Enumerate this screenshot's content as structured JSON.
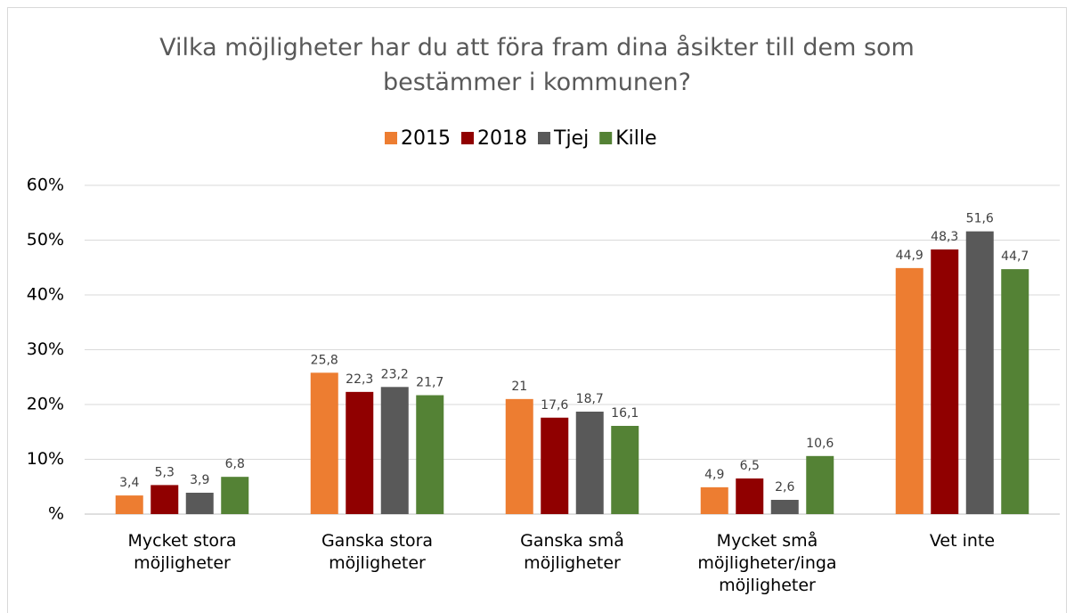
{
  "chart_data": {
    "type": "bar",
    "title": "Vilka möjligheter har du att föra fram dina åsikter till dem som bestämmer i kommunen?",
    "categories": [
      "Mycket stora möjligheter",
      "Ganska stora möjligheter",
      "Ganska små möjligheter",
      "Mycket små möjligheter/inga möjligheter",
      "Vet inte"
    ],
    "series": [
      {
        "name": "2015",
        "color": "#ed7d31",
        "values": [
          3.4,
          25.8,
          21,
          4.9,
          44.9
        ],
        "value_labels": [
          "3,4",
          "25,8",
          "21",
          "4,9",
          "44,9"
        ]
      },
      {
        "name": "2018",
        "color": "#900000",
        "values": [
          5.3,
          22.3,
          17.6,
          6.5,
          48.3
        ],
        "value_labels": [
          "5,3",
          "22,3",
          "17,6",
          "6,5",
          "48,3"
        ]
      },
      {
        "name": "Tjej",
        "color": "#595959",
        "values": [
          3.9,
          23.2,
          18.7,
          2.6,
          51.6
        ],
        "value_labels": [
          "3,9",
          "23,2",
          "18,7",
          "2,6",
          "51,6"
        ]
      },
      {
        "name": "Kille",
        "color": "#548235",
        "values": [
          6.8,
          21.7,
          16.1,
          10.6,
          44.7
        ],
        "value_labels": [
          "6,8",
          "21,7",
          "16,1",
          "10,6",
          "44,7"
        ]
      }
    ],
    "ylim": [
      0,
      60
    ],
    "yticks": [
      {
        "value": 0,
        "label": "%"
      },
      {
        "value": 10,
        "label": "10%"
      },
      {
        "value": 20,
        "label": "20%"
      },
      {
        "value": 30,
        "label": "30%"
      },
      {
        "value": 40,
        "label": "40%"
      },
      {
        "value": 50,
        "label": "50%"
      },
      {
        "value": 60,
        "label": "60%"
      }
    ],
    "grid": true,
    "legend": "top"
  }
}
